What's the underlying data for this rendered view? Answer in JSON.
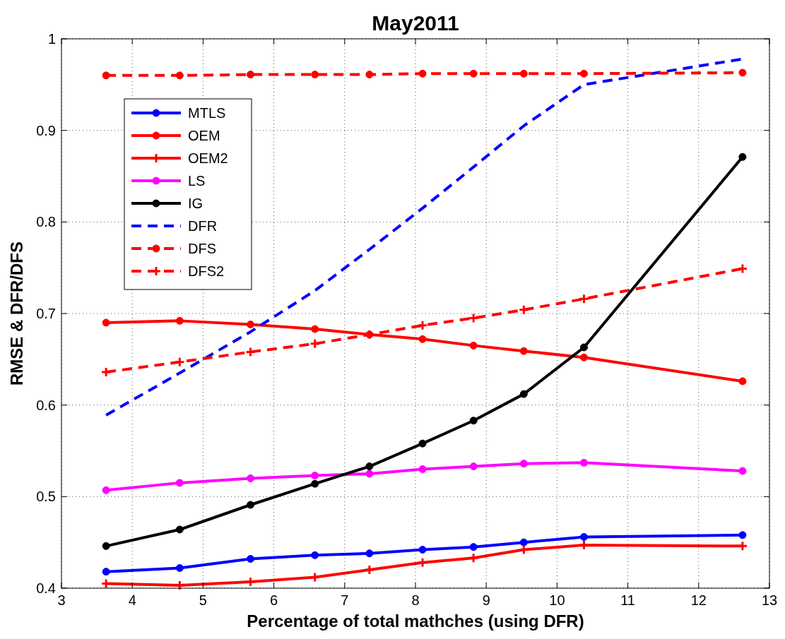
{
  "chart_data": {
    "type": "line",
    "title": "May2011",
    "xlabel": "Percentage of total mathches (using DFR)",
    "ylabel": "RMSE & DFR/DFS",
    "x": [
      3.63,
      4.67,
      5.67,
      6.58,
      7.35,
      8.1,
      8.82,
      9.53,
      10.38,
      12.62
    ],
    "xlim": [
      3,
      13
    ],
    "xticks": [
      3,
      4,
      5,
      6,
      7,
      8,
      9,
      10,
      11,
      12,
      13
    ],
    "ylim": [
      0.4,
      1
    ],
    "yticks": [
      0.4,
      0.5,
      0.6,
      0.7,
      0.8,
      0.9,
      1
    ],
    "grid": true,
    "legend": "top left",
    "series": [
      {
        "name": "MTLS",
        "color": "#0000ff",
        "marker": "circle",
        "line_style": "solid",
        "values": [
          0.418,
          0.422,
          0.432,
          0.436,
          0.438,
          0.442,
          0.445,
          0.45,
          0.456,
          0.458
        ]
      },
      {
        "name": "OEM",
        "color": "#ff0000",
        "marker": "circle",
        "line_style": "solid",
        "values": [
          0.69,
          0.692,
          0.688,
          0.683,
          0.677,
          0.672,
          0.665,
          0.659,
          0.652,
          0.626
        ]
      },
      {
        "name": "OEM2",
        "color": "#ff0000",
        "marker": "cross",
        "line_style": "solid",
        "values": [
          0.405,
          0.403,
          0.407,
          0.412,
          0.42,
          0.428,
          0.433,
          0.442,
          0.447,
          0.446
        ]
      },
      {
        "name": "LS",
        "color": "#ff00ff",
        "marker": "circle",
        "line_style": "solid",
        "values": [
          0.507,
          0.515,
          0.52,
          0.523,
          0.525,
          0.53,
          0.533,
          0.536,
          0.537,
          0.528
        ]
      },
      {
        "name": "IG",
        "color": "#000000",
        "marker": "circle",
        "line_style": "solid",
        "values": [
          0.446,
          0.464,
          0.491,
          0.514,
          0.533,
          0.558,
          0.583,
          0.612,
          0.663,
          0.871
        ]
      },
      {
        "name": "DFR",
        "color": "#0000ff",
        "marker": "none",
        "line_style": "dashed",
        "values": [
          0.589,
          0.635,
          0.68,
          0.725,
          0.77,
          0.815,
          0.86,
          0.905,
          0.95,
          0.978
        ]
      },
      {
        "name": "DFS",
        "color": "#ff0000",
        "marker": "circle",
        "line_style": "dashed",
        "values": [
          0.96,
          0.96,
          0.961,
          0.961,
          0.961,
          0.962,
          0.962,
          0.962,
          0.962,
          0.963
        ]
      },
      {
        "name": "DFS2",
        "color": "#ff0000",
        "marker": "cross",
        "line_style": "dashed",
        "values": [
          0.636,
          0.647,
          0.658,
          0.667,
          0.677,
          0.687,
          0.695,
          0.704,
          0.716,
          0.749
        ]
      }
    ]
  }
}
